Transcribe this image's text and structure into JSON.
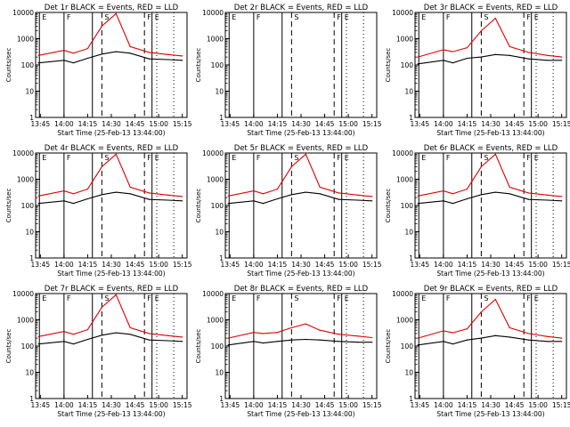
{
  "figure": {
    "description_note": "3x3 grid of detector rate panels, log y axis",
    "colors": {
      "events": "#000000",
      "lld": "#e00000",
      "axes": "#000000",
      "background": "#ffffff"
    }
  },
  "chart_data": [
    {
      "type": "line",
      "title": "Det 1r BLACK = Events, RED = LLD",
      "xlabel": "Start Time (25-Feb-13 13:44:00)",
      "ylabel": "Counts/sec",
      "yscale": "log",
      "ylim": [
        1,
        10000
      ],
      "xticks": [
        "13:45",
        "14:00",
        "14:15",
        "14:30",
        "14:45",
        "15:00",
        "15:15"
      ],
      "yticks": [
        "1",
        "10",
        "100",
        "1000",
        "10000"
      ],
      "markers": [
        "E",
        "F",
        "S",
        "F",
        "E"
      ],
      "series": [
        {
          "name": "Events",
          "values": [
            [
              13.73,
              120
            ],
            [
              14.0,
              150
            ],
            [
              14.1,
              120
            ],
            [
              14.25,
              180
            ],
            [
              14.4,
              260
            ],
            [
              14.55,
              320
            ],
            [
              14.7,
              280
            ],
            [
              14.9,
              170
            ],
            [
              15.1,
              160
            ],
            [
              15.25,
              150
            ]
          ]
        },
        {
          "name": "LLD",
          "values": [
            [
              13.73,
              230
            ],
            [
              14.0,
              360
            ],
            [
              14.1,
              280
            ],
            [
              14.25,
              420
            ],
            [
              14.4,
              3000
            ],
            [
              14.55,
              9000
            ],
            [
              14.7,
              500
            ],
            [
              14.9,
              300
            ],
            [
              15.1,
              250
            ],
            [
              15.25,
              220
            ]
          ]
        }
      ]
    },
    {
      "type": "line",
      "title": "Det 2r BLACK = Events, RED = LLD",
      "xlabel": "Start Time (25-Feb-13 13:44:00)",
      "ylabel": "Counts/sec",
      "yscale": "log",
      "ylim": [
        1,
        10000
      ],
      "xticks": [
        "13:45",
        "14:00",
        "14:15",
        "14:30",
        "14:45",
        "15:00",
        "15:15"
      ],
      "yticks": [
        "1",
        "10",
        "100",
        "1000",
        "10000"
      ],
      "markers": [
        "E",
        "F",
        "S",
        "F",
        "E"
      ],
      "series": []
    },
    {
      "type": "line",
      "title": "Det 3r BLACK = Events, RED = LLD",
      "xlabel": "Start Time (25-Feb-13 13:44:00)",
      "ylabel": "Counts/sec",
      "yscale": "log",
      "ylim": [
        1,
        10000
      ],
      "xticks": [
        "13:45",
        "14:00",
        "14:15",
        "14:30",
        "14:45",
        "15:00",
        "15:15"
      ],
      "yticks": [
        "1",
        "10",
        "100",
        "1000",
        "10000"
      ],
      "markers": [
        "E",
        "F",
        "S",
        "F",
        "E"
      ],
      "series": [
        {
          "name": "Events",
          "values": [
            [
              13.73,
              110
            ],
            [
              14.0,
              150
            ],
            [
              14.1,
              120
            ],
            [
              14.25,
              180
            ],
            [
              14.4,
              200
            ],
            [
              14.55,
              250
            ],
            [
              14.7,
              230
            ],
            [
              14.9,
              170
            ],
            [
              15.1,
              150
            ],
            [
              15.25,
              150
            ]
          ]
        },
        {
          "name": "LLD",
          "values": [
            [
              13.73,
              200
            ],
            [
              14.0,
              380
            ],
            [
              14.1,
              320
            ],
            [
              14.25,
              450
            ],
            [
              14.4,
              2000
            ],
            [
              14.55,
              6000
            ],
            [
              14.7,
              500
            ],
            [
              14.9,
              300
            ],
            [
              15.1,
              230
            ],
            [
              15.25,
              200
            ]
          ]
        }
      ]
    },
    {
      "type": "line",
      "title": "Det 4r BLACK = Events, RED = LLD",
      "xlabel": "Start Time (25-Feb-13 13:44:00)",
      "ylabel": "Counts/sec",
      "yscale": "log",
      "ylim": [
        1,
        10000
      ],
      "xticks": [
        "13:45",
        "14:00",
        "14:15",
        "14:30",
        "14:45",
        "15:00",
        "15:15"
      ],
      "yticks": [
        "1",
        "10",
        "100",
        "1000",
        "10000"
      ],
      "markers": [
        "E",
        "F",
        "S",
        "F",
        "E"
      ],
      "series": [
        {
          "name": "Events",
          "values": [
            [
              13.73,
              120
            ],
            [
              14.0,
              150
            ],
            [
              14.1,
              120
            ],
            [
              14.25,
              180
            ],
            [
              14.4,
              260
            ],
            [
              14.55,
              320
            ],
            [
              14.7,
              280
            ],
            [
              14.9,
              170
            ],
            [
              15.1,
              160
            ],
            [
              15.25,
              150
            ]
          ]
        },
        {
          "name": "LLD",
          "values": [
            [
              13.73,
              230
            ],
            [
              14.0,
              360
            ],
            [
              14.1,
              280
            ],
            [
              14.25,
              420
            ],
            [
              14.4,
              3000
            ],
            [
              14.55,
              9000
            ],
            [
              14.7,
              500
            ],
            [
              14.9,
              300
            ],
            [
              15.1,
              250
            ],
            [
              15.25,
              220
            ]
          ]
        }
      ]
    },
    {
      "type": "line",
      "title": "Det 5r BLACK = Events, RED = LLD",
      "xlabel": "Start Time (25-Feb-13 13:44:00)",
      "ylabel": "Counts/sec",
      "yscale": "log",
      "ylim": [
        1,
        10000
      ],
      "xticks": [
        "13:45",
        "14:00",
        "14:15",
        "14:30",
        "14:45",
        "15:00",
        "15:15"
      ],
      "yticks": [
        "1",
        "10",
        "100",
        "1000",
        "10000"
      ],
      "markers": [
        "E",
        "F",
        "S",
        "F",
        "E"
      ],
      "series": [
        {
          "name": "Events",
          "values": [
            [
              13.73,
              120
            ],
            [
              14.0,
              150
            ],
            [
              14.1,
              120
            ],
            [
              14.25,
              180
            ],
            [
              14.4,
              260
            ],
            [
              14.55,
              320
            ],
            [
              14.7,
              280
            ],
            [
              14.9,
              170
            ],
            [
              15.1,
              160
            ],
            [
              15.25,
              150
            ]
          ]
        },
        {
          "name": "LLD",
          "values": [
            [
              13.73,
              230
            ],
            [
              14.0,
              360
            ],
            [
              14.1,
              280
            ],
            [
              14.25,
              420
            ],
            [
              14.4,
              3000
            ],
            [
              14.55,
              9000
            ],
            [
              14.7,
              500
            ],
            [
              14.9,
              300
            ],
            [
              15.1,
              250
            ],
            [
              15.25,
              220
            ]
          ]
        }
      ]
    },
    {
      "type": "line",
      "title": "Det 6r BLACK = Events, RED = LLD",
      "xlabel": "Start Time (25-Feb-13 13:44:00)",
      "ylabel": "Counts/sec",
      "yscale": "log",
      "ylim": [
        1,
        10000
      ],
      "xticks": [
        "13:45",
        "14:00",
        "14:15",
        "14:30",
        "14:45",
        "15:00",
        "15:15"
      ],
      "yticks": [
        "1",
        "10",
        "100",
        "1000",
        "10000"
      ],
      "markers": [
        "E",
        "F",
        "S",
        "F",
        "E"
      ],
      "series": [
        {
          "name": "Events",
          "values": [
            [
              13.73,
              120
            ],
            [
              14.0,
              150
            ],
            [
              14.1,
              120
            ],
            [
              14.25,
              180
            ],
            [
              14.4,
              260
            ],
            [
              14.55,
              320
            ],
            [
              14.7,
              280
            ],
            [
              14.9,
              170
            ],
            [
              15.1,
              160
            ],
            [
              15.25,
              150
            ]
          ]
        },
        {
          "name": "LLD",
          "values": [
            [
              13.73,
              230
            ],
            [
              14.0,
              360
            ],
            [
              14.1,
              280
            ],
            [
              14.25,
              420
            ],
            [
              14.4,
              3000
            ],
            [
              14.55,
              9000
            ],
            [
              14.7,
              500
            ],
            [
              14.9,
              300
            ],
            [
              15.1,
              250
            ],
            [
              15.25,
              220
            ]
          ]
        }
      ]
    },
    {
      "type": "line",
      "title": "Det 7r BLACK = Events, RED = LLD",
      "xlabel": "Start Time (25-Feb-13 13:44:00)",
      "ylabel": "Counts/sec",
      "yscale": "log",
      "ylim": [
        1,
        10000
      ],
      "xticks": [
        "13:45",
        "14:00",
        "14:15",
        "14:30",
        "14:45",
        "15:00",
        "15:15"
      ],
      "yticks": [
        "1",
        "10",
        "100",
        "1000",
        "10000"
      ],
      "markers": [
        "E",
        "F",
        "S",
        "F",
        "E"
      ],
      "series": [
        {
          "name": "Events",
          "values": [
            [
              13.73,
              120
            ],
            [
              14.0,
              150
            ],
            [
              14.1,
              120
            ],
            [
              14.25,
              180
            ],
            [
              14.4,
              260
            ],
            [
              14.55,
              320
            ],
            [
              14.7,
              280
            ],
            [
              14.9,
              170
            ],
            [
              15.1,
              160
            ],
            [
              15.25,
              150
            ]
          ]
        },
        {
          "name": "LLD",
          "values": [
            [
              13.73,
              230
            ],
            [
              14.0,
              360
            ],
            [
              14.1,
              280
            ],
            [
              14.25,
              420
            ],
            [
              14.4,
              3000
            ],
            [
              14.55,
              9000
            ],
            [
              14.7,
              500
            ],
            [
              14.9,
              300
            ],
            [
              15.1,
              250
            ],
            [
              15.25,
              220
            ]
          ]
        }
      ]
    },
    {
      "type": "line",
      "title": "Det 8r BLACK = Events, RED = LLD",
      "xlabel": "Start Time (25-Feb-13 13:44:00)",
      "ylabel": "Counts/sec",
      "yscale": "log",
      "ylim": [
        1,
        10000
      ],
      "xticks": [
        "13:45",
        "14:00",
        "14:15",
        "14:30",
        "14:45",
        "15:00",
        "15:15"
      ],
      "yticks": [
        "1",
        "10",
        "100",
        "1000",
        "10000"
      ],
      "markers": [
        "E",
        "F",
        "S",
        "F",
        "E"
      ],
      "series": [
        {
          "name": "Events",
          "values": [
            [
              13.73,
              110
            ],
            [
              14.0,
              150
            ],
            [
              14.1,
              130
            ],
            [
              14.25,
              150
            ],
            [
              14.4,
              170
            ],
            [
              14.55,
              180
            ],
            [
              14.7,
              170
            ],
            [
              14.9,
              150
            ],
            [
              15.1,
              140
            ],
            [
              15.25,
              140
            ]
          ]
        },
        {
          "name": "LLD",
          "values": [
            [
              13.73,
              200
            ],
            [
              14.0,
              330
            ],
            [
              14.1,
              300
            ],
            [
              14.25,
              330
            ],
            [
              14.4,
              500
            ],
            [
              14.55,
              700
            ],
            [
              14.7,
              400
            ],
            [
              14.9,
              280
            ],
            [
              15.1,
              240
            ],
            [
              15.25,
              210
            ]
          ]
        }
      ]
    },
    {
      "type": "line",
      "title": "Det 9r BLACK = Events, RED = LLD",
      "xlabel": "Start Time (25-Feb-13 13:44:00)",
      "ylabel": "Counts/sec",
      "yscale": "log",
      "ylim": [
        1,
        10000
      ],
      "xticks": [
        "13:45",
        "14:00",
        "14:15",
        "14:30",
        "14:45",
        "15:00",
        "15:15"
      ],
      "yticks": [
        "1",
        "10",
        "100",
        "1000",
        "10000"
      ],
      "markers": [
        "E",
        "F",
        "S",
        "F",
        "E"
      ],
      "series": [
        {
          "name": "Events",
          "values": [
            [
              13.73,
              110
            ],
            [
              14.0,
              150
            ],
            [
              14.1,
              120
            ],
            [
              14.25,
              170
            ],
            [
              14.4,
              200
            ],
            [
              14.55,
              250
            ],
            [
              14.7,
              220
            ],
            [
              14.9,
              170
            ],
            [
              15.1,
              150
            ],
            [
              15.25,
              150
            ]
          ]
        },
        {
          "name": "LLD",
          "values": [
            [
              13.73,
              200
            ],
            [
              14.0,
              380
            ],
            [
              14.1,
              320
            ],
            [
              14.25,
              450
            ],
            [
              14.4,
              2000
            ],
            [
              14.55,
              6000
            ],
            [
              14.7,
              500
            ],
            [
              14.9,
              300
            ],
            [
              15.1,
              230
            ],
            [
              15.25,
              200
            ]
          ]
        }
      ]
    }
  ]
}
